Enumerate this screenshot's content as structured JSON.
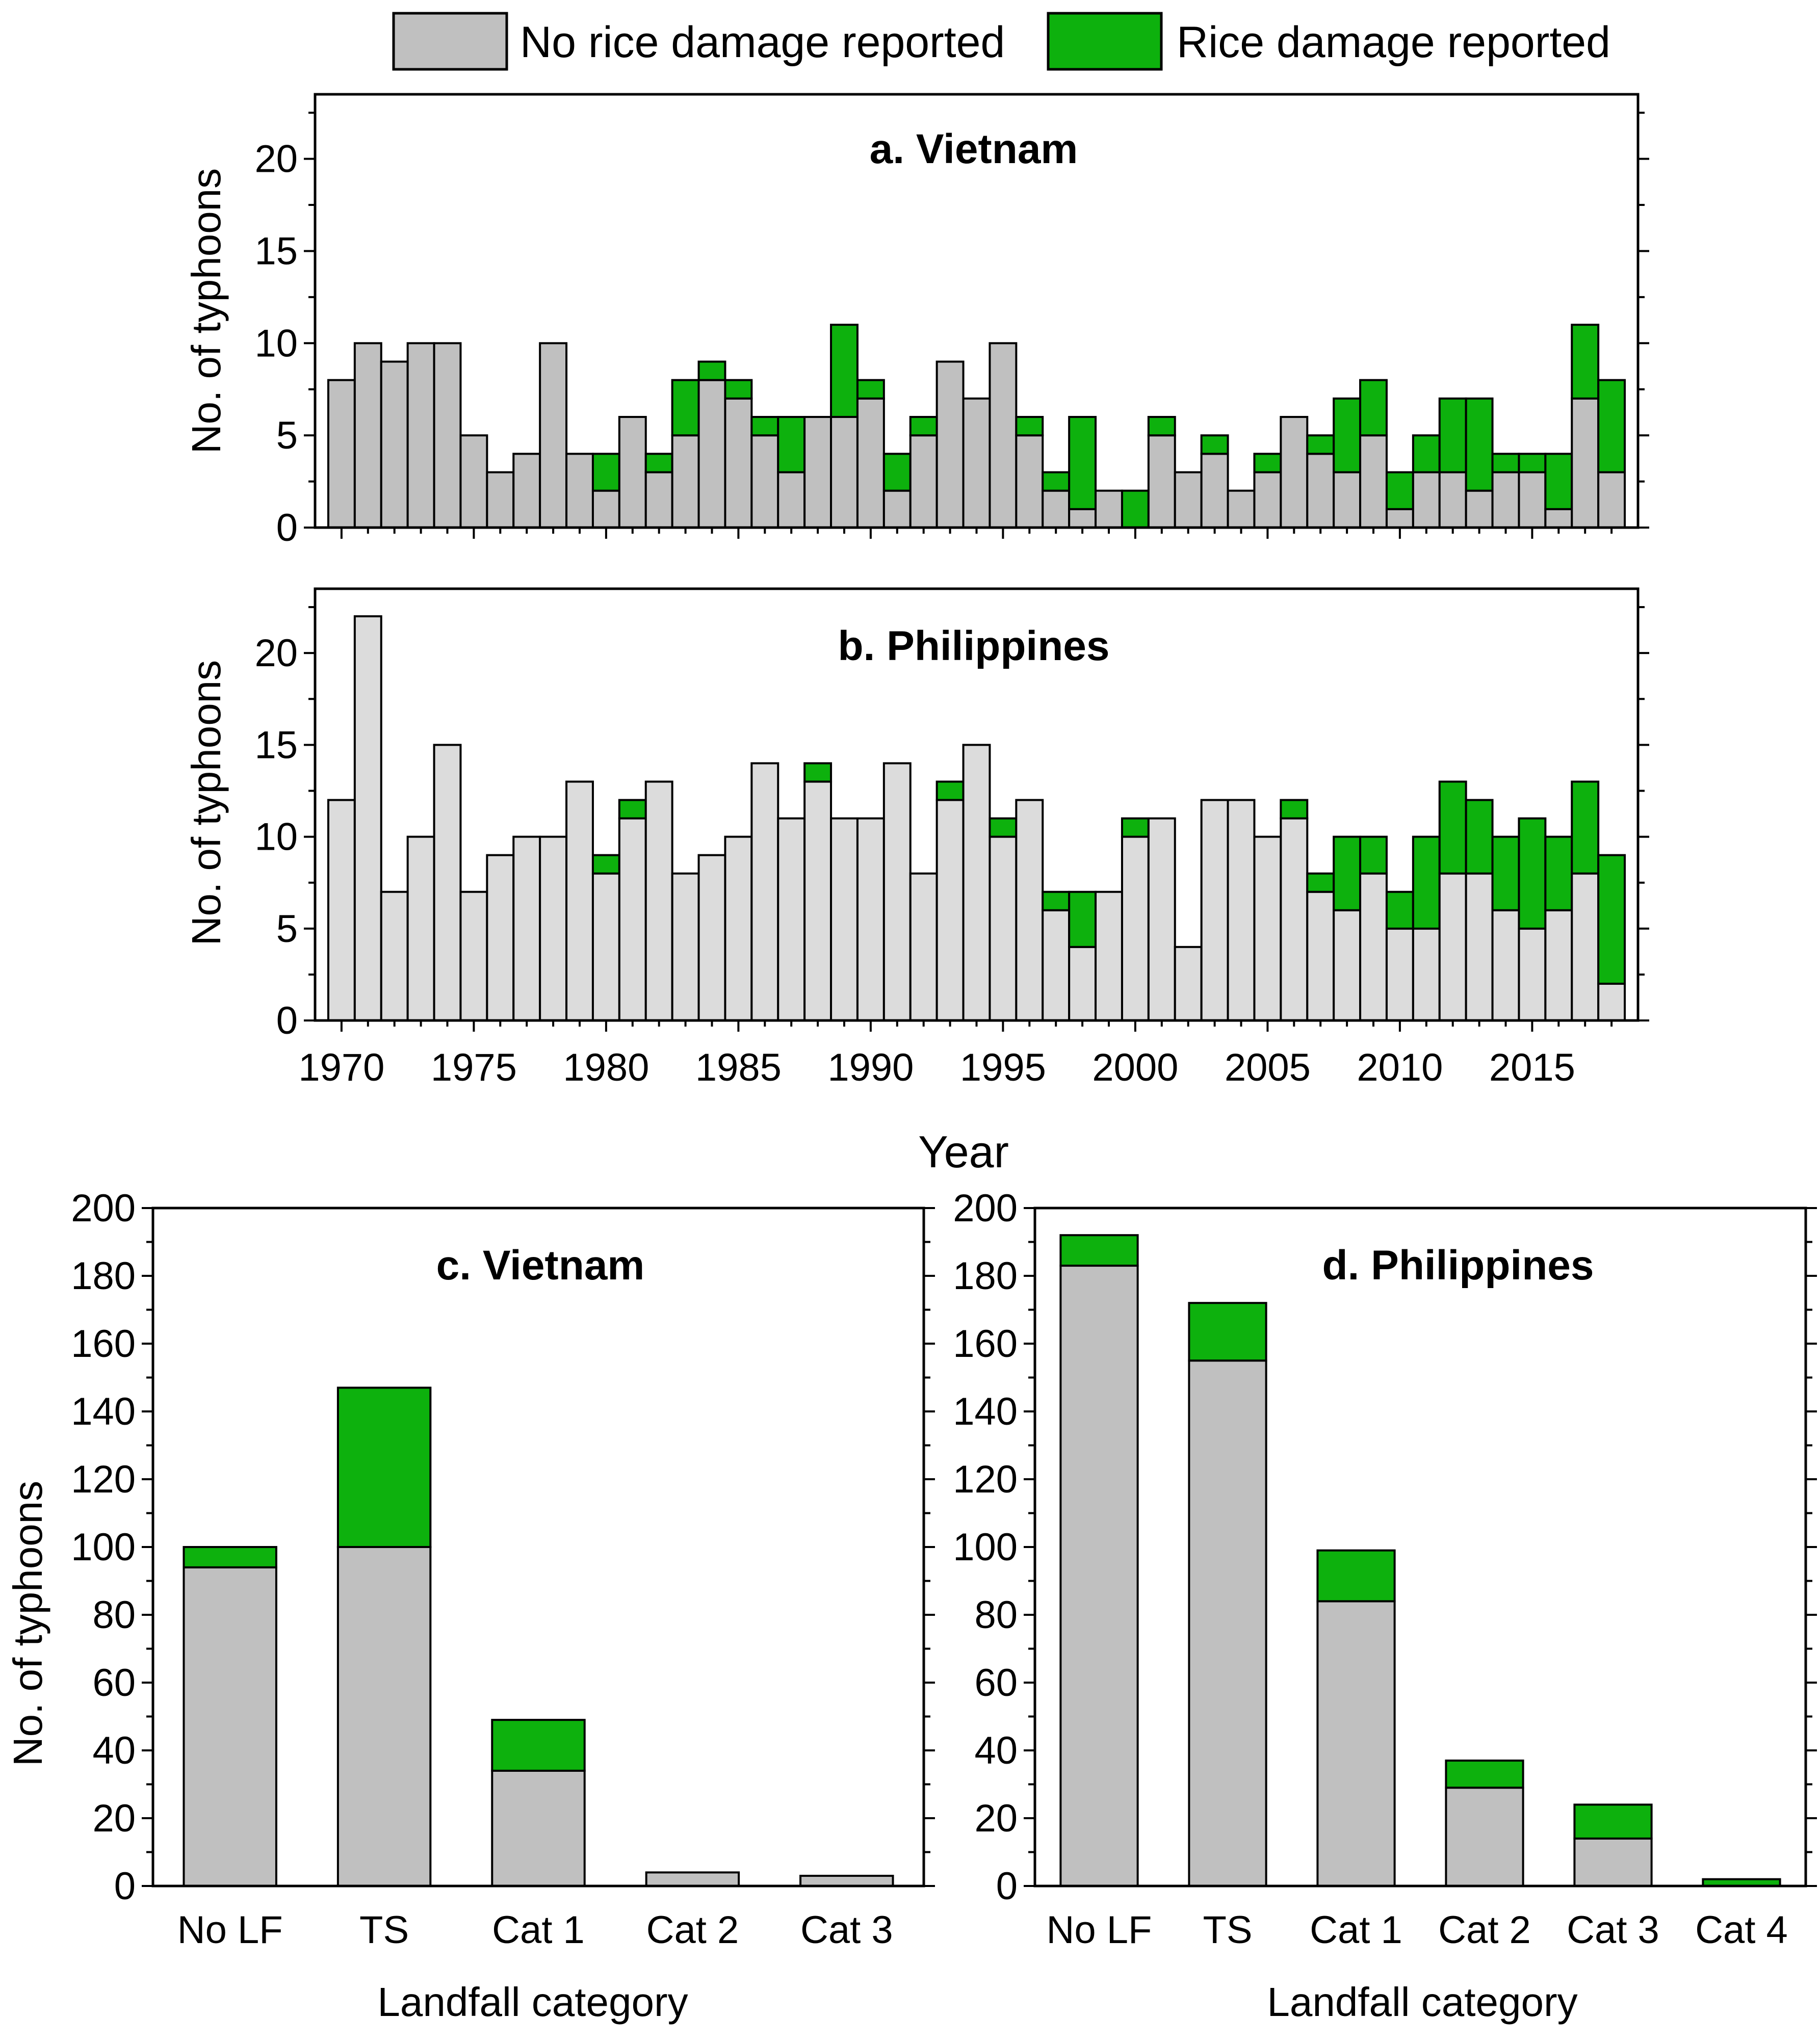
{
  "colors": {
    "no_damage": "#c0c0c0",
    "no_damage_light": "#dcdcdc",
    "damage": "#0db10d"
  },
  "legend": {
    "items": [
      {
        "label": "No rice damage reported",
        "color": "#c0c0c0"
      },
      {
        "label": "Rice damage reported",
        "color": "#0db10d"
      }
    ]
  },
  "chart_data": [
    {
      "type": "bar",
      "stacked": true,
      "title": "a. Vietnam",
      "xlabel": "",
      "ylabel": "No. of typhoons",
      "ylim": [
        0,
        23.5
      ],
      "yticks": [
        0,
        5,
        10,
        15,
        20
      ],
      "xlim": [
        1969,
        2019
      ],
      "xticks": [
        1970,
        1975,
        1980,
        1985,
        1990,
        1995,
        2000,
        2005,
        2010,
        2015
      ],
      "show_xtick_labels": false,
      "x": [
        1970,
        1971,
        1972,
        1973,
        1974,
        1975,
        1976,
        1977,
        1978,
        1979,
        1980,
        1981,
        1982,
        1983,
        1984,
        1985,
        1986,
        1987,
        1988,
        1989,
        1990,
        1991,
        1992,
        1993,
        1994,
        1995,
        1996,
        1997,
        1998,
        1999,
        2000,
        2001,
        2002,
        2003,
        2004,
        2005,
        2006,
        2007,
        2008,
        2009,
        2010,
        2011,
        2012,
        2013,
        2014,
        2015,
        2016,
        2017,
        2018
      ],
      "series": [
        {
          "name": "No rice damage reported",
          "color": "#c0c0c0",
          "values": [
            8,
            10,
            9,
            10,
            10,
            5,
            3,
            4,
            10,
            4,
            2,
            6,
            3,
            5,
            8,
            7,
            5,
            3,
            6,
            6,
            7,
            2,
            5,
            9,
            7,
            10,
            5,
            2,
            1,
            2,
            0,
            5,
            3,
            4,
            2,
            3,
            6,
            4,
            3,
            5,
            1,
            3,
            3,
            2,
            3,
            3,
            1,
            7,
            3
          ]
        },
        {
          "name": "Rice damage reported",
          "color": "#0db10d",
          "values": [
            0,
            0,
            0,
            0,
            0,
            0,
            0,
            0,
            0,
            0,
            2,
            0,
            1,
            3,
            1,
            1,
            1,
            3,
            0,
            5,
            1,
            2,
            1,
            0,
            0,
            0,
            1,
            1,
            5,
            0,
            2,
            1,
            0,
            1,
            0,
            1,
            0,
            1,
            4,
            3,
            2,
            2,
            4,
            5,
            1,
            1,
            3,
            4,
            5
          ]
        }
      ]
    },
    {
      "type": "bar",
      "stacked": true,
      "title": "b. Philippines",
      "xlabel": "Year",
      "ylabel": "No. of typhoons",
      "ylim": [
        0,
        23.5
      ],
      "yticks": [
        0,
        5,
        10,
        15,
        20
      ],
      "xlim": [
        1969,
        2019
      ],
      "xticks": [
        1970,
        1975,
        1980,
        1985,
        1990,
        1995,
        2000,
        2005,
        2010,
        2015
      ],
      "show_xtick_labels": true,
      "x": [
        1970,
        1971,
        1972,
        1973,
        1974,
        1975,
        1976,
        1977,
        1978,
        1979,
        1980,
        1981,
        1982,
        1983,
        1984,
        1985,
        1986,
        1987,
        1988,
        1989,
        1990,
        1991,
        1992,
        1993,
        1994,
        1995,
        1996,
        1997,
        1998,
        1999,
        2000,
        2001,
        2002,
        2003,
        2004,
        2005,
        2006,
        2007,
        2008,
        2009,
        2010,
        2011,
        2012,
        2013,
        2014,
        2015,
        2016,
        2017,
        2018
      ],
      "series": [
        {
          "name": "No rice damage reported",
          "color": "#dcdcdc",
          "values": [
            12,
            22,
            7,
            10,
            15,
            7,
            9,
            10,
            10,
            13,
            8,
            11,
            13,
            8,
            9,
            10,
            14,
            11,
            13,
            11,
            11,
            14,
            8,
            12,
            15,
            10,
            12,
            6,
            4,
            7,
            10,
            11,
            4,
            12,
            12,
            10,
            11,
            7,
            6,
            8,
            5,
            5,
            8,
            8,
            6,
            5,
            6,
            8,
            2
          ]
        },
        {
          "name": "Rice damage reported",
          "color": "#0db10d",
          "values": [
            0,
            0,
            0,
            0,
            0,
            0,
            0,
            0,
            0,
            0,
            1,
            1,
            0,
            0,
            0,
            0,
            0,
            0,
            1,
            0,
            0,
            0,
            0,
            1,
            0,
            1,
            0,
            1,
            3,
            0,
            1,
            0,
            0,
            0,
            0,
            0,
            1,
            1,
            4,
            2,
            2,
            5,
            5,
            4,
            4,
            6,
            4,
            5,
            7
          ]
        }
      ]
    },
    {
      "type": "bar",
      "stacked": true,
      "title": "c. Vietnam",
      "xlabel": "Landfall category",
      "ylabel": "No. of typhoons",
      "ylim": [
        0,
        200
      ],
      "yticks": [
        0,
        20,
        40,
        60,
        80,
        100,
        120,
        140,
        160,
        180,
        200
      ],
      "categories": [
        "No LF",
        "TS",
        "Cat 1",
        "Cat 2",
        "Cat 3"
      ],
      "series": [
        {
          "name": "No rice damage reported",
          "color": "#c0c0c0",
          "values": [
            94,
            100,
            34,
            4,
            3
          ]
        },
        {
          "name": "Rice damage reported",
          "color": "#0db10d",
          "values": [
            6,
            47,
            15,
            0,
            0
          ]
        }
      ]
    },
    {
      "type": "bar",
      "stacked": true,
      "title": "d. Philippines",
      "xlabel": "Landfall category",
      "ylabel": "",
      "ylim": [
        0,
        200
      ],
      "yticks": [
        0,
        20,
        40,
        60,
        80,
        100,
        120,
        140,
        160,
        180,
        200
      ],
      "categories": [
        "No LF",
        "TS",
        "Cat 1",
        "Cat 2",
        "Cat 3",
        "Cat 4"
      ],
      "series": [
        {
          "name": "No rice damage reported",
          "color": "#c0c0c0",
          "values": [
            183,
            155,
            84,
            29,
            14,
            0
          ]
        },
        {
          "name": "Rice damage reported",
          "color": "#0db10d",
          "values": [
            9,
            17,
            15,
            8,
            10,
            2
          ]
        }
      ]
    }
  ]
}
